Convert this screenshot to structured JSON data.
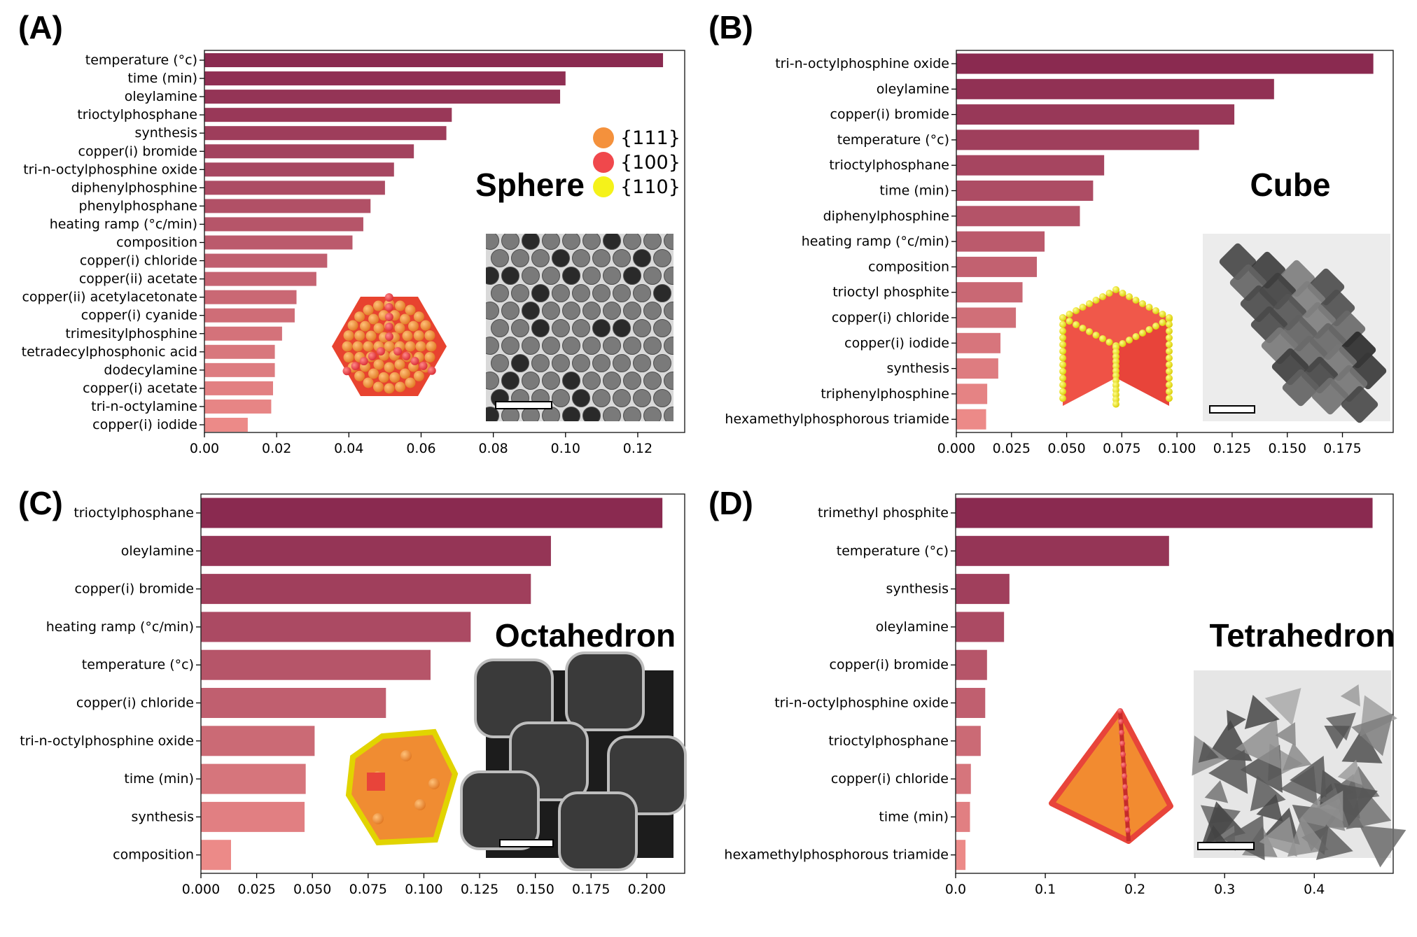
{
  "figure": {
    "panels": [
      {
        "label": "(A)",
        "shape": "Sphere"
      },
      {
        "label": "(B)",
        "shape": "Cube"
      },
      {
        "label": "(C)",
        "shape": "Octahedron"
      },
      {
        "label": "(D)",
        "shape": "Tetrahedron"
      }
    ],
    "legend": [
      {
        "label": "{111}",
        "color": "#f4913c"
      },
      {
        "label": "{100}",
        "color": "#f0484c"
      },
      {
        "label": "{110}",
        "color": "#f5f21a"
      }
    ],
    "colors": {
      "bar_dark": "#8a2a50",
      "bar_light": "#ec8a88"
    }
  },
  "chart_data": [
    {
      "type": "bar",
      "orientation": "horizontal",
      "title": "Sphere",
      "categories": [
        "temperature (°c)",
        "time (min)",
        "oleylamine",
        "trioctylphosphane",
        "synthesis",
        "copper(i) bromide",
        "tri-n-octylphosphine oxide",
        "diphenylphosphine",
        "phenylphosphane",
        "heating ramp (°c/min)",
        "composition",
        "copper(i) chloride",
        "copper(ii) acetate",
        "copper(ii) acetylacetonate",
        "copper(i) cyanide",
        "trimesitylphosphine",
        "tetradecylphosphonic acid",
        "dodecylamine",
        "copper(i) acetate",
        "tri-n-octylamine",
        "copper(i) iodide"
      ],
      "values": [
        0.127,
        0.1,
        0.0985,
        0.0685,
        0.067,
        0.058,
        0.0525,
        0.05,
        0.046,
        0.044,
        0.041,
        0.034,
        0.031,
        0.0255,
        0.025,
        0.0215,
        0.0195,
        0.0195,
        0.019,
        0.0185,
        0.012
      ],
      "xlim": [
        0,
        0.133
      ],
      "xticks": [
        "0.00",
        "0.02",
        "0.04",
        "0.06",
        "0.08",
        "0.10",
        "0.12"
      ]
    },
    {
      "type": "bar",
      "orientation": "horizontal",
      "title": "Cube",
      "categories": [
        "tri-n-octylphosphine oxide",
        "oleylamine",
        "copper(i) bromide",
        "temperature (°c)",
        "trioctylphosphane",
        "time (min)",
        "diphenylphosphine",
        "heating ramp (°c/min)",
        "composition",
        "trioctyl phosphite",
        "copper(i) chloride",
        "copper(i) iodide",
        "synthesis",
        "triphenylphosphine",
        "hexamethylphosphorous triamide"
      ],
      "values": [
        0.189,
        0.144,
        0.126,
        0.11,
        0.067,
        0.062,
        0.056,
        0.04,
        0.0365,
        0.03,
        0.027,
        0.02,
        0.019,
        0.014,
        0.0135
      ],
      "xlim": [
        0,
        0.198
      ],
      "xticks": [
        "0.000",
        "0.025",
        "0.050",
        "0.075",
        "0.100",
        "0.125",
        "0.150",
        "0.175"
      ]
    },
    {
      "type": "bar",
      "orientation": "horizontal",
      "title": "Octahedron",
      "categories": [
        "trioctylphosphane",
        "oleylamine",
        "copper(i) bromide",
        "heating ramp (°c/min)",
        "temperature (°c)",
        "copper(i) chloride",
        "tri-n-octylphosphine oxide",
        "time (min)",
        "synthesis",
        "composition"
      ],
      "values": [
        0.207,
        0.157,
        0.148,
        0.121,
        0.103,
        0.083,
        0.051,
        0.047,
        0.0465,
        0.0135
      ],
      "xlim": [
        0,
        0.217
      ],
      "xticks": [
        "0.000",
        "0.025",
        "0.050",
        "0.075",
        "0.100",
        "0.125",
        "0.150",
        "0.175",
        "0.200"
      ]
    },
    {
      "type": "bar",
      "orientation": "horizontal",
      "title": "Tetrahedron",
      "categories": [
        "trimethyl phosphite",
        "temperature (°c)",
        "synthesis",
        "oleylamine",
        "copper(i) bromide",
        "tri-n-octylphosphine oxide",
        "trioctylphosphane",
        "copper(i) chloride",
        "time (min)",
        "hexamethylphosphorous triamide"
      ],
      "values": [
        0.465,
        0.238,
        0.06,
        0.054,
        0.035,
        0.033,
        0.028,
        0.017,
        0.016,
        0.011
      ],
      "xlim": [
        0,
        0.488
      ],
      "xticks": [
        "0.0",
        "0.1",
        "0.2",
        "0.3",
        "0.4"
      ]
    }
  ]
}
